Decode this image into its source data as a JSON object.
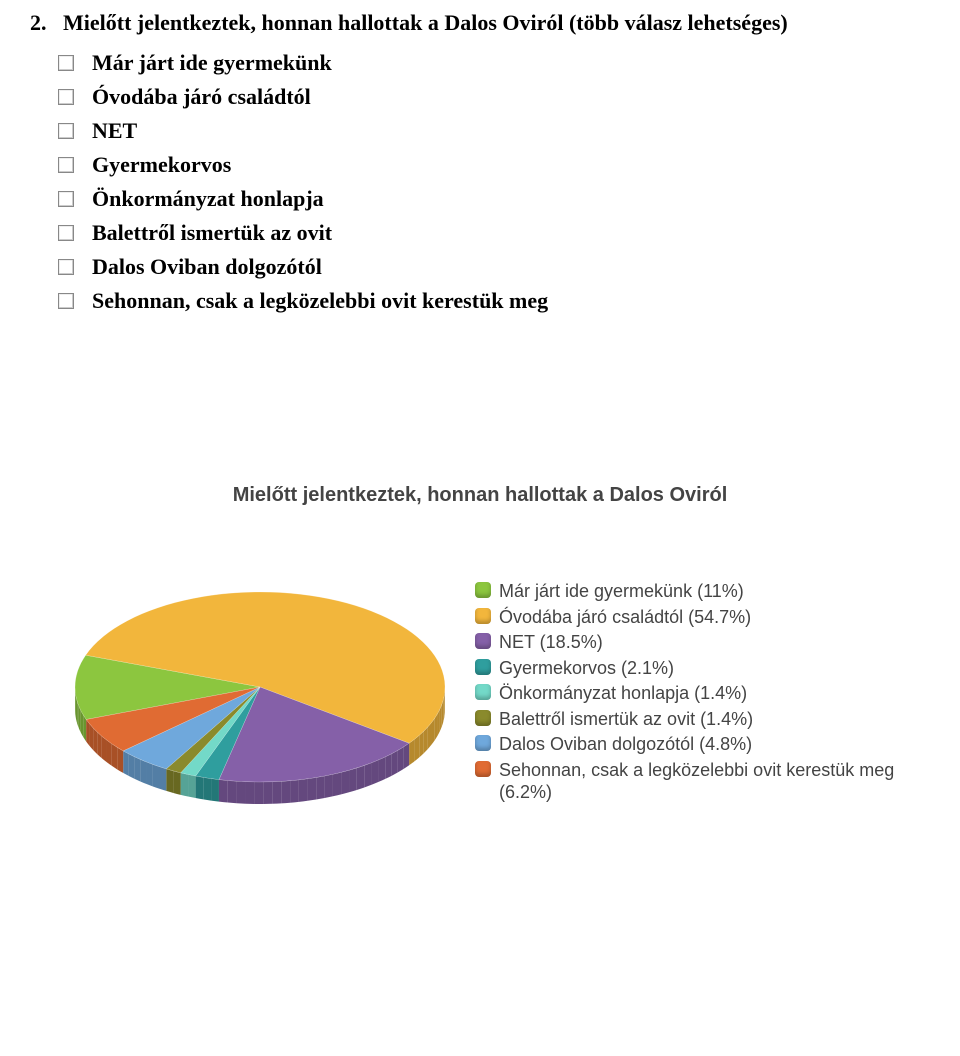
{
  "question": {
    "number": "2.",
    "text": "Mielőtt jelentkeztek, honnan hallottak a Dalos Oviról (több válasz lehetséges)",
    "options": [
      "Már járt ide gyermekünk",
      "Óvodába járó családtól",
      "NET",
      "Gyermekorvos",
      "Önkormányzat honlapja",
      "Balettről ismertük az ovit",
      "Dalos Oviban dolgozótól",
      "Sehonnan, csak a legközelebbi ovit kerestük meg"
    ]
  },
  "chart": {
    "type": "pie",
    "title": "Mielőtt jelentkeztek, honnan hallottak a Dalos Oviról",
    "title_fontsize": 20,
    "title_color": "#444444",
    "title_font": "Trebuchet MS",
    "background_color": "#ffffff",
    "pie_radius": 170,
    "pie_tilt_deg": 55,
    "series": [
      {
        "label": "Már járt ide gyermekünk",
        "value": 11.0,
        "pct_text": "11%",
        "color": "#8cc63f"
      },
      {
        "label": "Óvodába járó családtól",
        "value": 54.7,
        "pct_text": "54.7%",
        "color": "#f2b63c"
      },
      {
        "label": "NET",
        "value": 18.5,
        "pct_text": "18.5%",
        "color": "#8560a8"
      },
      {
        "label": "Gyermekorvos",
        "value": 2.1,
        "pct_text": "2.1%",
        "color": "#2f9e9e"
      },
      {
        "label": "Önkormányzat honlapja",
        "value": 1.4,
        "pct_text": "1.4%",
        "color": "#73d9c8"
      },
      {
        "label": "Balettről ismertük az ovit",
        "value": 1.4,
        "pct_text": "1.4%",
        "color": "#8a8a2c"
      },
      {
        "label": "Dalos Oviban dolgozótól",
        "value": 4.8,
        "pct_text": "4.8%",
        "color": "#6fa8dc"
      },
      {
        "label": "Sehonnan, csak a legközelebbi ovit kerestük meg",
        "value": 6.2,
        "pct_text": "6.2%",
        "color": "#e06b33"
      }
    ],
    "legend": {
      "font": "Trebuchet MS",
      "fontsize": 18,
      "color": "#444444",
      "swatch_radius": 4
    }
  }
}
